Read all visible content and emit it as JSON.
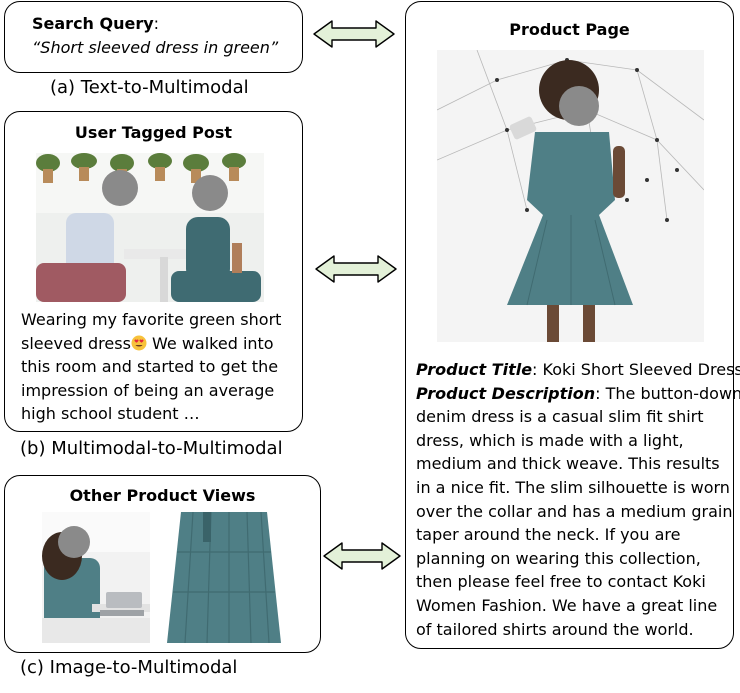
{
  "query": {
    "label": "Search Query",
    "colon": ":",
    "text": "“Short sleeved dress in green”"
  },
  "captions": {
    "a": "(a) Text-to-Multimodal",
    "b": "(b) Multimodal-to-Multimodal",
    "c": "(c) Image-to-Multimodal"
  },
  "post": {
    "title": "User Tagged Post",
    "lines": [
      "Wearing my favorite green short",
      "sleeved dress",
      " We walked into",
      "this room and started to get the",
      "impression of being an average",
      "high school student …"
    ]
  },
  "other_views": {
    "title": "Other Product Views"
  },
  "product_page": {
    "title": "Product Page",
    "title_label": "Product Title",
    "title_value": ": Koki Short Sleeved Dress",
    "desc_label": "Product Description",
    "desc_lines": [
      ": The button-down",
      "denim dress is a casual slim fit shirt",
      "dress, which is made with a light,",
      "medium and thick weave. This results",
      "in a nice fit. The slim silhouette is worn",
      "over the collar and has a medium grain",
      "taper around the neck. If you are",
      "planning on wearing this collection,",
      "then please feel free to contact Koki",
      "Women Fashion. We have a great line",
      "of tailored shirts around the world."
    ]
  },
  "colors": {
    "arrow_fill": "#e3f1d8",
    "dress": "#4f7f86",
    "face_blur": "#8a8a8a"
  },
  "icons": [
    "double-arrow-icon",
    "smiling-heart-eyes-emoji"
  ]
}
